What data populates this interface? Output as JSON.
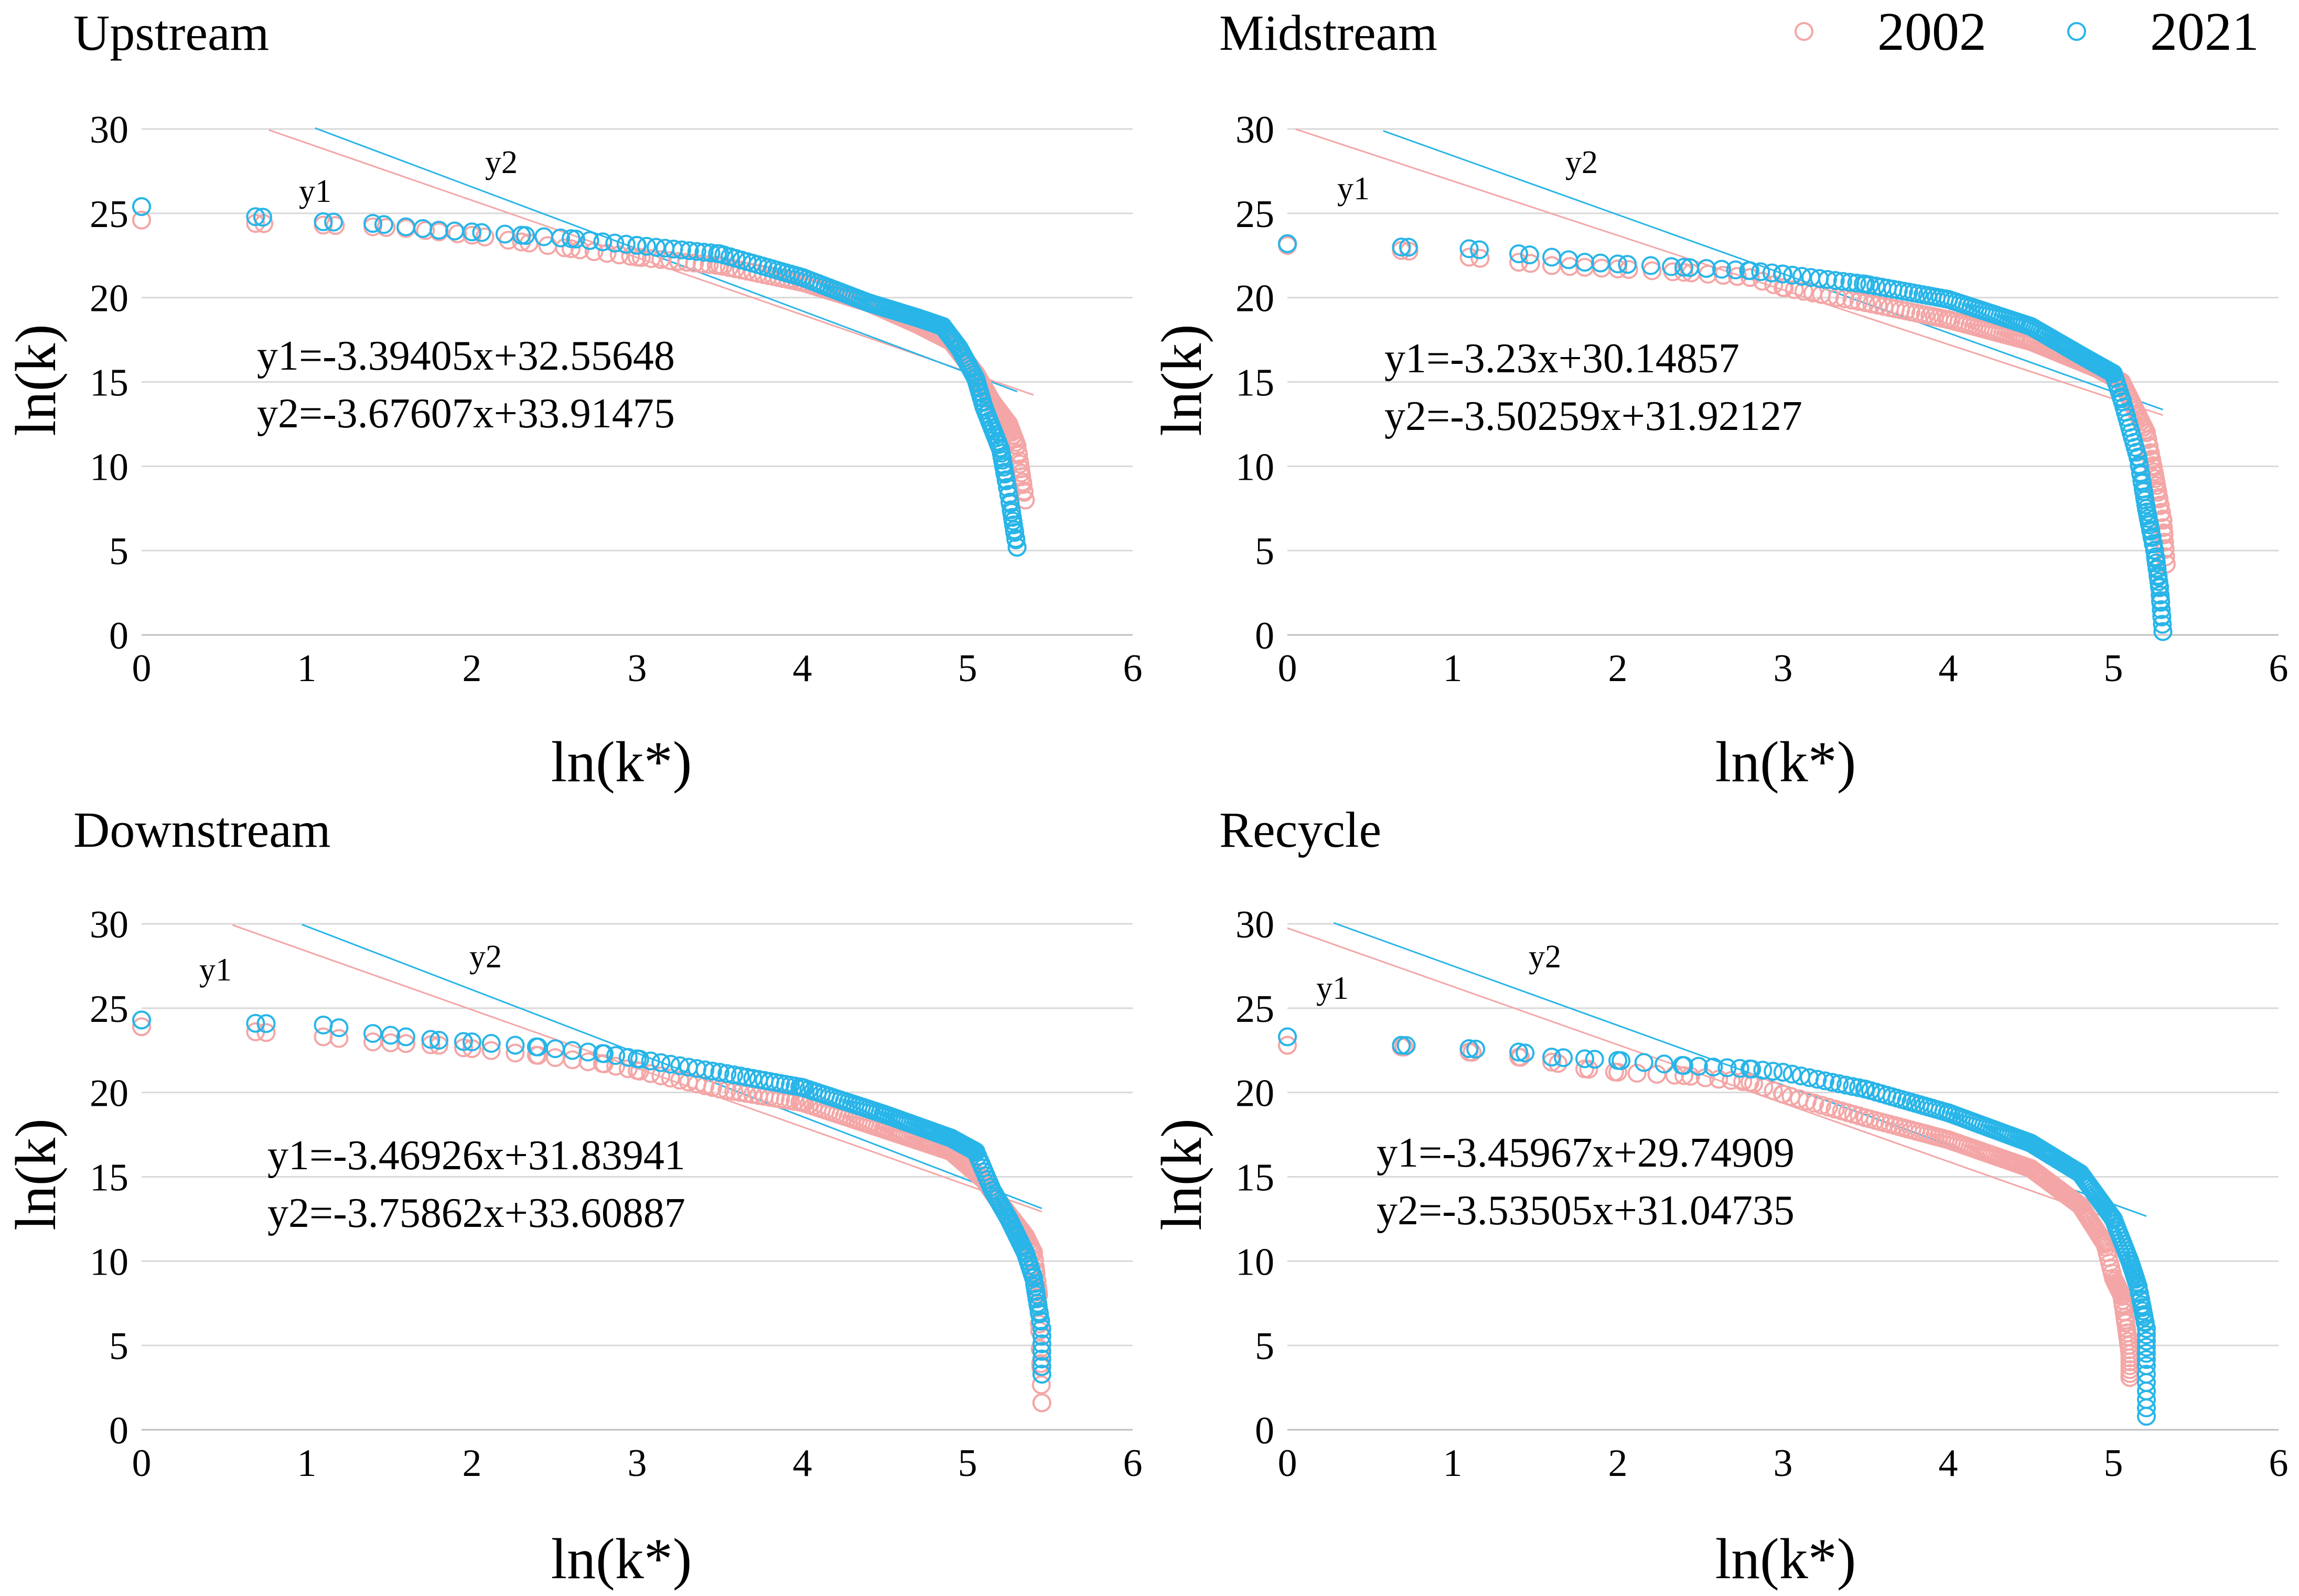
{
  "colors": {
    "2002": "#f4a6a6",
    "2021": "#29b5e8"
  },
  "legend": {
    "items": [
      "2002",
      "2021"
    ],
    "placement": "top-right"
  },
  "chart_data": [
    {
      "type": "scatter",
      "title": "Upstream",
      "xlabel": "ln(k*)",
      "ylabel": "ln(k)",
      "xlim": [
        0,
        6
      ],
      "ylim": [
        0,
        30
      ],
      "xticks": [
        "0",
        "1",
        "2",
        "3",
        "4",
        "5",
        "6"
      ],
      "yticks": [
        "0",
        "5",
        "10",
        "15",
        "20",
        "25",
        "30"
      ],
      "grid": true,
      "equations": [
        "y1=-3.39405x+32.55648",
        "y2=-3.67607x+33.91475"
      ],
      "line_labels": [
        "y1",
        "y2"
      ],
      "series": [
        {
          "name": "2002",
          "anchors": [
            [
              0,
              24.6
            ],
            [
              0.69,
              24.4
            ],
            [
              1.1,
              24.3
            ],
            [
              1.4,
              24.2
            ],
            [
              1.6,
              24.1
            ],
            [
              1.8,
              23.9
            ],
            [
              2.0,
              23.7
            ],
            [
              2.3,
              23.3
            ],
            [
              2.6,
              22.9
            ],
            [
              3.0,
              22.4
            ],
            [
              3.5,
              21.9
            ],
            [
              4.0,
              20.9
            ],
            [
              4.4,
              19.7
            ],
            [
              4.7,
              18.4
            ],
            [
              4.9,
              17.4
            ],
            [
              5.05,
              15.5
            ],
            [
              5.15,
              13.8
            ],
            [
              5.25,
              12.5
            ],
            [
              5.3,
              11.2
            ],
            [
              5.35,
              8.0
            ]
          ],
          "fit": {
            "slope": -3.39405,
            "intercept": 32.55648,
            "x_from": 0.77,
            "x_to": 5.4
          }
        },
        {
          "name": "2021",
          "anchors": [
            [
              0,
              25.4
            ],
            [
              0.69,
              24.8
            ],
            [
              1.1,
              24.5
            ],
            [
              1.4,
              24.4
            ],
            [
              1.6,
              24.2
            ],
            [
              1.8,
              24.0
            ],
            [
              2.0,
              23.9
            ],
            [
              2.3,
              23.7
            ],
            [
              2.6,
              23.5
            ],
            [
              3.0,
              23.1
            ],
            [
              3.5,
              22.6
            ],
            [
              4.0,
              21.2
            ],
            [
              4.4,
              19.7
            ],
            [
              4.7,
              18.8
            ],
            [
              4.85,
              18.3
            ],
            [
              4.95,
              17.0
            ],
            [
              5.05,
              15.2
            ],
            [
              5.1,
              13.5
            ],
            [
              5.2,
              11.0
            ],
            [
              5.25,
              8.3
            ],
            [
              5.3,
              5.2
            ]
          ],
          "fit": {
            "slope": -3.67607,
            "intercept": 33.91475,
            "x_from": 1.05,
            "x_to": 5.3
          }
        }
      ]
    },
    {
      "type": "scatter",
      "title": "Midstream",
      "xlabel": "ln(k*)",
      "ylabel": "ln(k)",
      "xlim": [
        0,
        6
      ],
      "ylim": [
        0,
        30
      ],
      "xticks": [
        "0",
        "1",
        "2",
        "3",
        "4",
        "5",
        "6"
      ],
      "yticks": [
        "0",
        "5",
        "10",
        "15",
        "20",
        "25",
        "30"
      ],
      "grid": true,
      "equations": [
        "y1=-3.23x+30.14857",
        "y2=-3.50259x+31.92127"
      ],
      "line_labels": [
        "y1",
        "y2"
      ],
      "series": [
        {
          "name": "2002",
          "anchors": [
            [
              0,
              23.1
            ],
            [
              0.69,
              22.8
            ],
            [
              1.1,
              22.4
            ],
            [
              1.4,
              22.1
            ],
            [
              1.6,
              21.9
            ],
            [
              1.8,
              21.8
            ],
            [
              2.0,
              21.7
            ],
            [
              2.4,
              21.5
            ],
            [
              2.8,
              21.2
            ],
            [
              3.0,
              20.6
            ],
            [
              3.5,
              19.7
            ],
            [
              4.0,
              18.7
            ],
            [
              4.5,
              17.4
            ],
            [
              4.9,
              15.8
            ],
            [
              5.05,
              15.0
            ],
            [
              5.1,
              14.0
            ],
            [
              5.2,
              12.0
            ],
            [
              5.25,
              9.5
            ],
            [
              5.3,
              6.8
            ],
            [
              5.32,
              4.2
            ]
          ],
          "fit": {
            "slope": -3.23,
            "intercept": 30.14857,
            "x_from": 0.05,
            "x_to": 5.3
          }
        },
        {
          "name": "2021",
          "anchors": [
            [
              0,
              23.2
            ],
            [
              0.69,
              23.0
            ],
            [
              1.1,
              22.9
            ],
            [
              1.4,
              22.6
            ],
            [
              1.6,
              22.4
            ],
            [
              1.8,
              22.1
            ],
            [
              2.0,
              22.0
            ],
            [
              2.4,
              21.8
            ],
            [
              2.8,
              21.6
            ],
            [
              3.0,
              21.4
            ],
            [
              3.5,
              20.8
            ],
            [
              4.0,
              19.9
            ],
            [
              4.5,
              18.3
            ],
            [
              4.8,
              16.6
            ],
            [
              5.0,
              15.5
            ],
            [
              5.05,
              14.0
            ],
            [
              5.15,
              10.5
            ],
            [
              5.2,
              7.5
            ],
            [
              5.25,
              5.0
            ],
            [
              5.28,
              2.8
            ],
            [
              5.3,
              0.2
            ]
          ],
          "fit": {
            "slope": -3.50259,
            "intercept": 31.92127,
            "x_from": 0.58,
            "x_to": 5.3
          }
        }
      ]
    },
    {
      "type": "scatter",
      "title": "Downstream",
      "xlabel": "ln(k*)",
      "ylabel": "ln(k)",
      "xlim": [
        0,
        6
      ],
      "ylim": [
        0,
        30
      ],
      "xticks": [
        "0",
        "1",
        "2",
        "3",
        "4",
        "5",
        "6"
      ],
      "yticks": [
        "0",
        "5",
        "10",
        "15",
        "20",
        "25",
        "30"
      ],
      "grid": true,
      "equations": [
        "y1=-3.46926x+31.83941",
        "y2=-3.75862x+33.60887"
      ],
      "line_labels": [
        "y1",
        "y2"
      ],
      "series": [
        {
          "name": "2002",
          "anchors": [
            [
              0,
              23.9
            ],
            [
              0.69,
              23.6
            ],
            [
              1.1,
              23.3
            ],
            [
              1.4,
              23.0
            ],
            [
              1.6,
              22.9
            ],
            [
              1.8,
              22.8
            ],
            [
              2.0,
              22.6
            ],
            [
              2.4,
              22.2
            ],
            [
              2.8,
              21.7
            ],
            [
              3.0,
              21.3
            ],
            [
              3.5,
              20.2
            ],
            [
              4.0,
              19.4
            ],
            [
              4.5,
              17.8
            ],
            [
              4.9,
              16.5
            ],
            [
              5.1,
              14.8
            ],
            [
              5.2,
              13.4
            ],
            [
              5.35,
              11.5
            ],
            [
              5.4,
              10.5
            ],
            [
              5.43,
              8.0
            ],
            [
              5.45,
              1.6
            ]
          ],
          "fit": {
            "slope": -3.46926,
            "intercept": 31.83941,
            "x_from": 0.55,
            "x_to": 5.45
          }
        },
        {
          "name": "2021",
          "anchors": [
            [
              0,
              24.3
            ],
            [
              0.69,
              24.1
            ],
            [
              1.1,
              24.0
            ],
            [
              1.4,
              23.5
            ],
            [
              1.6,
              23.3
            ],
            [
              1.8,
              23.1
            ],
            [
              2.0,
              23.0
            ],
            [
              2.4,
              22.7
            ],
            [
              2.8,
              22.3
            ],
            [
              3.0,
              22.0
            ],
            [
              3.5,
              21.2
            ],
            [
              4.0,
              20.3
            ],
            [
              4.5,
              18.7
            ],
            [
              4.9,
              17.3
            ],
            [
              5.05,
              16.5
            ],
            [
              5.15,
              14.2
            ],
            [
              5.25,
              12.5
            ],
            [
              5.35,
              10.5
            ],
            [
              5.4,
              9.0
            ],
            [
              5.45,
              6.0
            ],
            [
              5.45,
              3.3
            ]
          ],
          "fit": {
            "slope": -3.75862,
            "intercept": 33.60887,
            "x_from": 0.97,
            "x_to": 5.45
          }
        }
      ]
    },
    {
      "type": "scatter",
      "title": "Recycle",
      "xlabel": "ln(k*)",
      "ylabel": "ln(k)",
      "xlim": [
        0,
        6
      ],
      "ylim": [
        0,
        30
      ],
      "xticks": [
        "0",
        "1",
        "2",
        "3",
        "4",
        "5",
        "6"
      ],
      "yticks": [
        "0",
        "5",
        "10",
        "15",
        "20",
        "25",
        "30"
      ],
      "grid": true,
      "equations": [
        "y1=-3.45967x+29.74909",
        "y2=-3.53505x+31.04735"
      ],
      "line_labels": [
        "y1",
        "y2"
      ],
      "series": [
        {
          "name": "2002",
          "anchors": [
            [
              0,
              22.8
            ],
            [
              0.69,
              22.7
            ],
            [
              1.1,
              22.4
            ],
            [
              1.4,
              22.1
            ],
            [
              1.6,
              21.8
            ],
            [
              1.8,
              21.4
            ],
            [
              2.0,
              21.2
            ],
            [
              2.4,
              21.0
            ],
            [
              2.8,
              20.6
            ],
            [
              3.0,
              19.9
            ],
            [
              3.5,
              18.5
            ],
            [
              4.0,
              17.2
            ],
            [
              4.5,
              15.5
            ],
            [
              4.8,
              13.3
            ],
            [
              4.95,
              11.0
            ],
            [
              5.0,
              9.0
            ],
            [
              5.05,
              8.0
            ],
            [
              5.08,
              6.0
            ],
            [
              5.1,
              4.5
            ],
            [
              5.1,
              3.1
            ]
          ],
          "fit": {
            "slope": -3.45967,
            "intercept": 29.74909,
            "x_from": 0.0,
            "x_to": 5.0
          }
        },
        {
          "name": "2021",
          "anchors": [
            [
              0,
              23.3
            ],
            [
              0.69,
              22.8
            ],
            [
              1.1,
              22.6
            ],
            [
              1.4,
              22.4
            ],
            [
              1.6,
              22.1
            ],
            [
              1.8,
              22.0
            ],
            [
              2.0,
              21.9
            ],
            [
              2.4,
              21.6
            ],
            [
              2.8,
              21.4
            ],
            [
              3.0,
              21.2
            ],
            [
              3.5,
              20.2
            ],
            [
              4.0,
              18.8
            ],
            [
              4.5,
              17.0
            ],
            [
              4.8,
              15.2
            ],
            [
              5.0,
              12.5
            ],
            [
              5.1,
              10.0
            ],
            [
              5.15,
              8.5
            ],
            [
              5.2,
              6.0
            ],
            [
              5.2,
              3.8
            ],
            [
              5.2,
              0.8
            ]
          ],
          "fit": {
            "slope": -3.53505,
            "intercept": 31.04735,
            "x_from": 0.28,
            "x_to": 5.2
          }
        }
      ]
    }
  ]
}
